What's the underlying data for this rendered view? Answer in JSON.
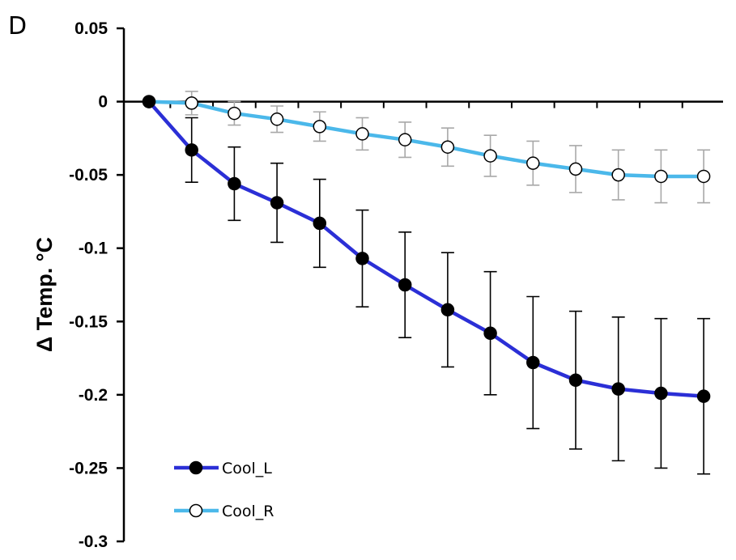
{
  "panel_label": "D",
  "chart_data": {
    "type": "line",
    "title": "",
    "xlabel": "",
    "ylabel": "Δ Temp. °C",
    "ylim": [
      -0.3,
      0.05
    ],
    "yticks": [
      0.05,
      0,
      -0.05,
      -0.1,
      -0.15,
      -0.2,
      -0.25,
      -0.3
    ],
    "ytick_labels": [
      "0.05",
      "0",
      "-0.05",
      "-0.1",
      "-0.15",
      "-0.2",
      "-0.25",
      "-0.3"
    ],
    "x": [
      0,
      1,
      2,
      3,
      4,
      5,
      6,
      7,
      8,
      9,
      10,
      11,
      12,
      13
    ],
    "grid": false,
    "legend_position": "bottom-left",
    "series": [
      {
        "name": "Cool_L",
        "line_color": "#2b2fd6",
        "marker_fill": "#000000",
        "error_color": "#000000",
        "values": [
          0,
          -0.033,
          -0.056,
          -0.069,
          -0.083,
          -0.107,
          -0.125,
          -0.142,
          -0.158,
          -0.178,
          -0.19,
          -0.196,
          -0.199,
          -0.201
        ],
        "errors": [
          0,
          0.022,
          0.025,
          0.027,
          0.03,
          0.033,
          0.036,
          0.039,
          0.042,
          0.045,
          0.047,
          0.049,
          0.051,
          0.053
        ]
      },
      {
        "name": "Cool_R",
        "line_color": "#4bb8ea",
        "marker_fill": "#ffffff",
        "error_color": "#a8a8a8",
        "values": [
          0,
          -0.001,
          -0.008,
          -0.012,
          -0.017,
          -0.022,
          -0.026,
          -0.031,
          -0.037,
          -0.042,
          -0.046,
          -0.05,
          -0.051,
          -0.051
        ],
        "errors": [
          0,
          0.008,
          0.008,
          0.009,
          0.01,
          0.011,
          0.012,
          0.013,
          0.014,
          0.015,
          0.016,
          0.017,
          0.018,
          0.018
        ]
      }
    ]
  }
}
